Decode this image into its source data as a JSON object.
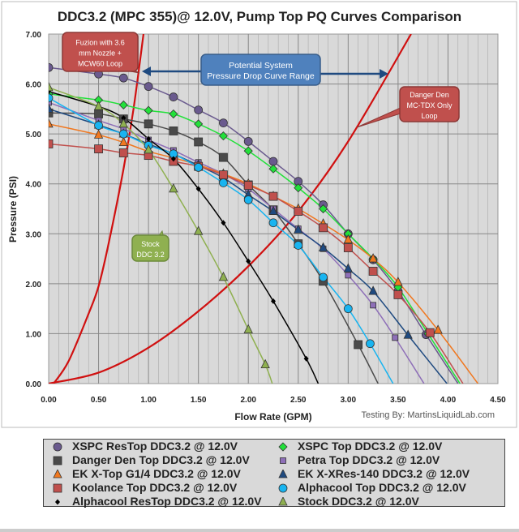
{
  "chart_data": {
    "type": "line",
    "title": "DDC3.2 (MPC 355)@ 12.0V, Pump Top PQ Curves Comparison",
    "xlabel": "Flow Rate (GPM)",
    "ylabel": "Pressure (PSI)",
    "xlim": [
      0,
      4.5
    ],
    "ylim": [
      0,
      7
    ],
    "xticks": [
      "0.00",
      "0.50",
      "1.00",
      "1.50",
      "2.00",
      "2.50",
      "3.00",
      "3.50",
      "4.00",
      "4.50"
    ],
    "yticks": [
      "0.00",
      "1.00",
      "2.00",
      "3.00",
      "4.00",
      "5.00",
      "6.00",
      "7.00"
    ],
    "grid": true,
    "legend_position": "bottom",
    "credit": "Testing By: MartinsLiquidLab.com",
    "series": [
      {
        "name": "XSPC ResTop DDC3.2 @ 12.0V",
        "color": "#6a5a8e",
        "marker": "circle",
        "points": [
          [
            0,
            6.33
          ],
          [
            0.5,
            6.2
          ],
          [
            0.75,
            6.12
          ],
          [
            1,
            5.95
          ],
          [
            1.25,
            5.74
          ],
          [
            1.5,
            5.48
          ],
          [
            1.75,
            5.22
          ],
          [
            2,
            4.85
          ],
          [
            2.25,
            4.45
          ],
          [
            2.5,
            4.05
          ],
          [
            2.75,
            3.58
          ],
          [
            3,
            3.0
          ],
          [
            3.25,
            2.48
          ],
          [
            3.5,
            1.85
          ],
          [
            3.78,
            0.98
          ]
        ],
        "end": [
          4.1,
          0
        ]
      },
      {
        "name": "XSPC Top DDC3.2 @ 12.0V",
        "color": "#22e03a",
        "marker": "diamond",
        "points": [
          [
            0,
            5.8
          ],
          [
            0.5,
            5.68
          ],
          [
            0.75,
            5.58
          ],
          [
            1,
            5.47
          ],
          [
            1.25,
            5.4
          ],
          [
            1.5,
            5.2
          ],
          [
            1.75,
            4.96
          ],
          [
            2,
            4.66
          ],
          [
            2.25,
            4.3
          ],
          [
            2.5,
            3.92
          ],
          [
            2.75,
            3.5
          ],
          [
            3,
            3.0
          ],
          [
            3.25,
            2.5
          ],
          [
            3.5,
            1.93
          ],
          [
            3.8,
            1.0
          ]
        ],
        "end": [
          4.12,
          0
        ]
      },
      {
        "name": "Danger Den Top DDC3.2 @ 12.0V",
        "color": "#4a4a4a",
        "marker": "square",
        "points": [
          [
            0,
            5.42
          ],
          [
            0.5,
            5.4
          ],
          [
            0.75,
            5.3
          ],
          [
            1,
            5.2
          ],
          [
            1.25,
            5.06
          ],
          [
            1.5,
            4.84
          ],
          [
            1.75,
            4.53
          ],
          [
            2,
            3.98
          ],
          [
            2.25,
            3.48
          ],
          [
            2.5,
            2.8
          ],
          [
            2.75,
            2.05
          ],
          [
            3.1,
            0.78
          ]
        ],
        "end": [
          3.3,
          0
        ]
      },
      {
        "name": "Petra Top DDC3.2 @ 12.0V",
        "color": "#8e6fb8",
        "marker": "smallsquare",
        "points": [
          [
            0,
            5.63
          ],
          [
            0.5,
            5.27
          ],
          [
            0.75,
            5.1
          ],
          [
            1,
            4.88
          ],
          [
            1.25,
            4.67
          ],
          [
            1.5,
            4.43
          ],
          [
            1.75,
            4.2
          ],
          [
            2,
            3.9
          ],
          [
            2.25,
            3.5
          ],
          [
            2.5,
            3.1
          ],
          [
            2.75,
            2.7
          ],
          [
            3,
            2.17
          ],
          [
            3.25,
            1.57
          ],
          [
            3.47,
            0.92
          ]
        ],
        "end": [
          3.76,
          0
        ]
      },
      {
        "name": "EK X-Top G1/4 DDC3.2 @ 12.0V",
        "color": "#f07820",
        "marker": "triangle",
        "points": [
          [
            0,
            5.2
          ],
          [
            0.5,
            4.98
          ],
          [
            0.75,
            4.83
          ],
          [
            1,
            4.65
          ],
          [
            1.25,
            4.52
          ],
          [
            1.5,
            4.38
          ],
          [
            1.75,
            4.2
          ],
          [
            2,
            4.0
          ],
          [
            2.25,
            3.75
          ],
          [
            2.5,
            3.5
          ],
          [
            2.75,
            3.2
          ],
          [
            3,
            2.88
          ],
          [
            3.25,
            2.5
          ],
          [
            3.5,
            2.03
          ],
          [
            3.9,
            1.07
          ]
        ],
        "end": [
          4.3,
          0
        ]
      },
      {
        "name": "EK X-XRes-140 DDC3.2 @ 12.0V",
        "color": "#1f4a80",
        "marker": "triangle",
        "points": [
          [
            0,
            5.5
          ],
          [
            0.5,
            5.18
          ],
          [
            0.75,
            5.0
          ],
          [
            1,
            4.8
          ],
          [
            1.25,
            4.6
          ],
          [
            1.5,
            4.37
          ],
          [
            1.75,
            4.12
          ],
          [
            2,
            3.78
          ],
          [
            2.25,
            3.45
          ],
          [
            2.5,
            3.08
          ],
          [
            2.75,
            2.72
          ],
          [
            3,
            2.3
          ],
          [
            3.25,
            1.85
          ],
          [
            3.6,
            0.97
          ]
        ],
        "end": [
          3.99,
          0
        ]
      },
      {
        "name": "Koolance Top DDC3.2 @ 12.0V",
        "color": "#c0504d",
        "marker": "square",
        "points": [
          [
            0,
            4.8
          ],
          [
            0.5,
            4.7
          ],
          [
            0.75,
            4.62
          ],
          [
            1,
            4.57
          ],
          [
            1.25,
            4.45
          ],
          [
            1.5,
            4.35
          ],
          [
            1.75,
            4.18
          ],
          [
            2,
            3.97
          ],
          [
            2.25,
            3.75
          ],
          [
            2.5,
            3.45
          ],
          [
            2.75,
            3.12
          ],
          [
            3,
            2.72
          ],
          [
            3.25,
            2.25
          ],
          [
            3.5,
            1.78
          ],
          [
            3.82,
            1.02
          ]
        ],
        "end": [
          4.15,
          0
        ]
      },
      {
        "name": "Alphacool Top DDC3.2 @ 12.0V",
        "color": "#18b4f0",
        "marker": "circle",
        "points": [
          [
            0,
            5.72
          ],
          [
            0.5,
            5.17
          ],
          [
            0.75,
            5.0
          ],
          [
            1,
            4.77
          ],
          [
            1.25,
            4.6
          ],
          [
            1.5,
            4.33
          ],
          [
            1.75,
            4.02
          ],
          [
            2,
            3.68
          ],
          [
            2.25,
            3.22
          ],
          [
            2.5,
            2.77
          ],
          [
            2.75,
            2.13
          ],
          [
            3,
            1.5
          ],
          [
            3.22,
            0.8
          ]
        ],
        "end": [
          3.45,
          0
        ]
      },
      {
        "name": "Alphacool ResTop DDC3.2 @ 12.0V",
        "color": "#000000",
        "marker": "smalldiamond",
        "points": [
          [
            0,
            5.85
          ],
          [
            0.5,
            5.55
          ],
          [
            0.75,
            5.32
          ],
          [
            1,
            4.9
          ],
          [
            1.25,
            4.5
          ],
          [
            1.5,
            3.9
          ],
          [
            1.75,
            3.22
          ],
          [
            2,
            2.45
          ],
          [
            2.25,
            1.65
          ],
          [
            2.58,
            0.5
          ]
        ],
        "end": [
          2.7,
          0
        ]
      },
      {
        "name": "Stock DDC3.2 @ 12.0V",
        "color": "#8fb050",
        "marker": "triangle",
        "points": [
          [
            0,
            5.93
          ],
          [
            0.5,
            5.55
          ],
          [
            0.75,
            5.2
          ],
          [
            1,
            4.68
          ],
          [
            1.25,
            3.9
          ],
          [
            1.5,
            3.05
          ],
          [
            1.75,
            2.13
          ],
          [
            2,
            1.08
          ],
          [
            2.17,
            0.38
          ]
        ],
        "end": [
          2.24,
          0
        ]
      }
    ],
    "system_curves": [
      {
        "name": "Fuzion with 3.6 mm Nozzle + MCW60 Loop",
        "color": "#d01010",
        "points": [
          [
            0.05,
            0
          ],
          [
            0.2,
            0.45
          ],
          [
            0.4,
            1.4
          ],
          [
            0.5,
            1.95
          ],
          [
            0.6,
            2.8
          ],
          [
            0.75,
            4.3
          ],
          [
            0.85,
            5.5
          ],
          [
            0.95,
            7
          ]
        ]
      },
      {
        "name": "Danger Den MC-TDX Only Loop",
        "color": "#d01010",
        "points": [
          [
            0,
            0
          ],
          [
            0.5,
            0.22
          ],
          [
            1,
            0.72
          ],
          [
            1.5,
            1.45
          ],
          [
            2,
            2.35
          ],
          [
            2.5,
            3.45
          ],
          [
            3,
            4.85
          ],
          [
            3.63,
            7
          ]
        ]
      }
    ],
    "annotations": {
      "fuzion": "Fuzion with 3.6 mm Nozzle + MCW60 Loop",
      "range_line1": "Potential System",
      "range_line2": "Pressure Drop Curve Range",
      "dd_line1": "Danger Den",
      "dd_line2": "MC-TDX Only",
      "dd_line3": "Loop",
      "stock_line1": "Stock",
      "stock_line2": "DDC 3.2",
      "fuzion_line1": "Fuzion with 3.6",
      "fuzion_line2": "mm Nozzle +",
      "fuzion_line3": "MCW60 Loop"
    }
  }
}
